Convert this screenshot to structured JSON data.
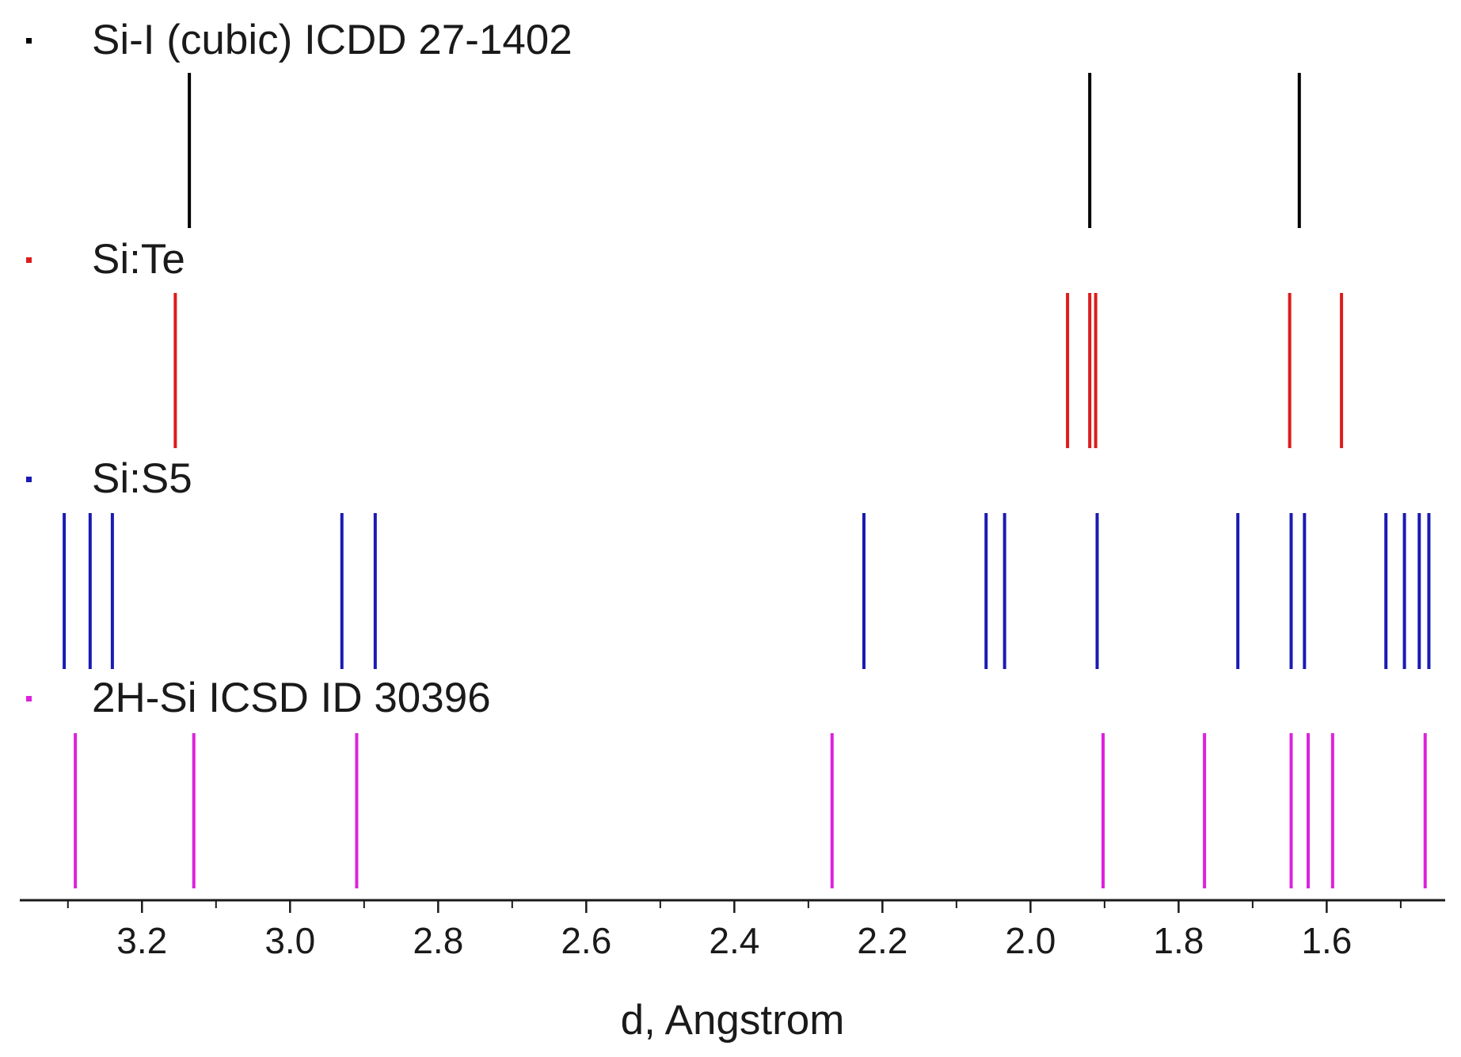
{
  "chart_data": {
    "type": "stick",
    "xlabel": "d, Angstrom",
    "xlim": [
      3.365,
      1.44
    ],
    "x_reversed": true,
    "major_ticks": [
      3.2,
      3.0,
      2.8,
      2.6,
      2.4,
      2.2,
      2.0,
      1.8,
      1.6
    ],
    "tick_labels": [
      "3.2",
      "3.0",
      "2.8",
      "2.6",
      "2.4",
      "2.2",
      "2.0",
      "1.8",
      "1.6"
    ],
    "minor_ticks": [
      3.3,
      3.1,
      2.9,
      2.7,
      2.5,
      2.3,
      2.1,
      1.9,
      1.7,
      1.5
    ],
    "series": [
      {
        "name": "Si-I (cubic) ICDD 27-1402",
        "color": "#000000",
        "values": [
          3.136,
          1.92,
          1.637
        ]
      },
      {
        "name": "Si:Te",
        "color": "#dd1c1c",
        "values": [
          3.155,
          1.95,
          1.92,
          1.912,
          1.65,
          1.58
        ]
      },
      {
        "name": "Si:S5",
        "color": "#1a1ab4",
        "values": [
          3.305,
          3.27,
          3.24,
          2.93,
          2.885,
          2.225,
          2.06,
          2.035,
          1.91,
          1.72,
          1.648,
          1.63,
          1.52,
          1.495,
          1.475,
          1.462
        ]
      },
      {
        "name": "2H-Si ICSD ID 30396",
        "color": "#dd22dd",
        "values": [
          3.29,
          3.13,
          2.91,
          2.268,
          1.902,
          1.765,
          1.648,
          1.625,
          1.592,
          1.467
        ]
      }
    ]
  }
}
